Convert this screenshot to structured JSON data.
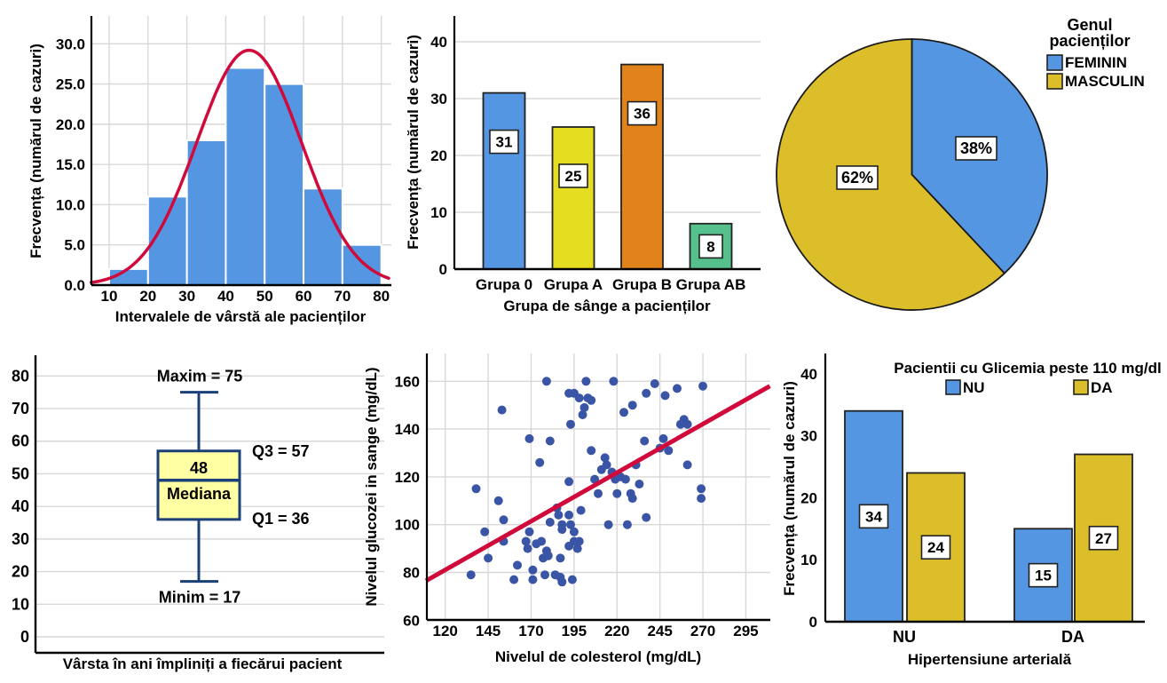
{
  "page": {
    "background": "#FFFFFF"
  },
  "palette": {
    "blue": "#5596E2",
    "yellow": "#E5DD1F",
    "orange": "#E2821A",
    "green": "#56C08C",
    "gold": "#DCBE2B",
    "red": "#D10A3C",
    "navy": "#1B3F77",
    "dot_navy": "#3A55A5",
    "grid": "#D8D8D8",
    "box_fill": "#FFFFA3"
  },
  "chart_data": [
    {
      "id": "histogram-age",
      "type": "histogram",
      "xlabel": "Intervalele de vârstă ale pacienților",
      "ylabel": "Frecvența (numărul de cazuri)",
      "bin_start": 10,
      "bin_width": 10,
      "bin_edges": [
        10,
        20,
        30,
        40,
        50,
        60,
        70,
        80
      ],
      "frequencies": [
        2,
        11,
        18,
        27,
        25,
        12,
        5
      ],
      "x_ticks": [
        10,
        20,
        30,
        40,
        50,
        60,
        70,
        80
      ],
      "y_tick_labels": [
        "0.0",
        "5.0",
        "10.0",
        "15.0",
        "20.0",
        "25.0",
        "30.0"
      ],
      "y_tick_values": [
        0,
        5,
        10,
        15,
        20,
        25,
        30
      ],
      "ylim": [
        0,
        33.5
      ],
      "grid": true,
      "normal_curve": {
        "mean": 46,
        "sd": 13.5,
        "peak": 29.2
      },
      "bar_color": "#5596E2",
      "curve_color": "#D10A3C"
    },
    {
      "id": "bar-blood-group",
      "type": "bar",
      "xlabel": "Grupa de sânge a pacienților",
      "ylabel": "Frecvența (numărul de cazuri)",
      "categories": [
        "Grupa 0",
        "Grupa A",
        "Grupa B",
        "Grupa AB"
      ],
      "values": [
        31,
        25,
        36,
        8
      ],
      "value_labels": [
        "31",
        "25",
        "36",
        "8"
      ],
      "colors": [
        "#5596E2",
        "#E5DD1F",
        "#E2821A",
        "#56C08C"
      ],
      "y_ticks": [
        0,
        10,
        20,
        30,
        40
      ],
      "ylim": [
        0,
        44.5
      ],
      "grid": true
    },
    {
      "id": "pie-gender",
      "type": "pie",
      "legend_title_lines": [
        "Genul",
        "pacienților"
      ],
      "slices": [
        {
          "label": "FEMININ",
          "pct": 38,
          "pct_label": "38%",
          "color": "#5596E2"
        },
        {
          "label": "MASCULIN",
          "pct": 62,
          "pct_label": "62%",
          "color": "#DCBE2B"
        }
      ],
      "start_angle_deg_from_top": 0,
      "direction": "clockwise",
      "legend_position": "top-right"
    },
    {
      "id": "boxplot-age",
      "type": "boxplot",
      "xlabel": "Vârsta în ani împliniți a fiecărui pacient",
      "y_ticks": [
        0,
        10,
        20,
        30,
        40,
        50,
        60,
        70,
        80
      ],
      "ylim": [
        0,
        86
      ],
      "grid": true,
      "min": 17,
      "q1": 36,
      "median": 48,
      "q3": 57,
      "max": 75,
      "annotations": {
        "max": "Maxim = 75",
        "q3": "Q3 = 57",
        "median_value": "48",
        "median_word": "Mediana",
        "q1": "Q1 = 36",
        "min": "Minim = 17"
      },
      "box_fill": "#FFFFA3",
      "box_stroke": "#1B3F77"
    },
    {
      "id": "scatter-cholesterol-glucose",
      "type": "scatter",
      "xlabel": "Nivelul de colesterol (mg/dL)",
      "ylabel": "Nivelul glucozei in sange (mg/dL)",
      "x_ticks": [
        120,
        145,
        170,
        195,
        220,
        245,
        270,
        295
      ],
      "y_ticks": [
        60,
        80,
        100,
        120,
        140,
        160
      ],
      "xlim": [
        108,
        309
      ],
      "ylim": [
        57,
        171
      ],
      "grid": true,
      "point_color": "#3A55A5",
      "line_color": "#D10A3C",
      "fit_line": {
        "x1": 108.8,
        "y1": 76.5,
        "x2": 309,
        "y2": 158
      },
      "points": [
        [
          135,
          79
        ],
        [
          138,
          115
        ],
        [
          143,
          97
        ],
        [
          145,
          86
        ],
        [
          151,
          110
        ],
        [
          153,
          148
        ],
        [
          154,
          93
        ],
        [
          154,
          102
        ],
        [
          160,
          77
        ],
        [
          162,
          83
        ],
        [
          167,
          93
        ],
        [
          168,
          90
        ],
        [
          169,
          97
        ],
        [
          169,
          136
        ],
        [
          171,
          81
        ],
        [
          171,
          77
        ],
        [
          173,
          92
        ],
        [
          175,
          126
        ],
        [
          176,
          93
        ],
        [
          177,
          86
        ],
        [
          178,
          79
        ],
        [
          179,
          160
        ],
        [
          179,
          89
        ],
        [
          180,
          87
        ],
        [
          181,
          135
        ],
        [
          181,
          101
        ],
        [
          184,
          79
        ],
        [
          185,
          107
        ],
        [
          186,
          104
        ],
        [
          187,
          86
        ],
        [
          187,
          78
        ],
        [
          188,
          100
        ],
        [
          188,
          98
        ],
        [
          188,
          76
        ],
        [
          192,
          104
        ],
        [
          192,
          91
        ],
        [
          192,
          155
        ],
        [
          192,
          118
        ],
        [
          193,
          142
        ],
        [
          193,
          100
        ],
        [
          194,
          77
        ],
        [
          195,
          155
        ],
        [
          195,
          97
        ],
        [
          195,
          93
        ],
        [
          197,
          90
        ],
        [
          198,
          153
        ],
        [
          198,
          93
        ],
        [
          199,
          106
        ],
        [
          200,
          146
        ],
        [
          201,
          149
        ],
        [
          202,
          160
        ],
        [
          203,
          153
        ],
        [
          205,
          152
        ],
        [
          205,
          131
        ],
        [
          207,
          119
        ],
        [
          209,
          113
        ],
        [
          211,
          123
        ],
        [
          213,
          128
        ],
        [
          214,
          125
        ],
        [
          215,
          100
        ],
        [
          217,
          122
        ],
        [
          218,
          160
        ],
        [
          219,
          119
        ],
        [
          220,
          113
        ],
        [
          222,
          120
        ],
        [
          224,
          147
        ],
        [
          225,
          119
        ],
        [
          226,
          100
        ],
        [
          228,
          113
        ],
        [
          229,
          111
        ],
        [
          229,
          150
        ],
        [
          231,
          125
        ],
        [
          233,
          117
        ],
        [
          236,
          135
        ],
        [
          237,
          103
        ],
        [
          237,
          155
        ],
        [
          242,
          159
        ],
        [
          245,
          132
        ],
        [
          247,
          136
        ],
        [
          248,
          154
        ],
        [
          250,
          131
        ],
        [
          255,
          157
        ],
        [
          257,
          142
        ],
        [
          259,
          144
        ],
        [
          261,
          142
        ],
        [
          261,
          125
        ],
        [
          269,
          115
        ],
        [
          269,
          111
        ],
        [
          270,
          158
        ]
      ]
    },
    {
      "id": "grouped-bar-hypertension",
      "type": "grouped_bar",
      "legend_title": "Pacientii cu Glicemia peste 110 mg/dl",
      "xlabel": "Hipertensiune arterială",
      "ylabel": "Frecvența (numărul de cazuri)",
      "categories": [
        "NU",
        "DA"
      ],
      "series": [
        {
          "name": "NU",
          "color": "#5596E2",
          "values": [
            34,
            15
          ]
        },
        {
          "name": "DA",
          "color": "#DCBE2B",
          "values": [
            24,
            27
          ]
        }
      ],
      "value_labels": [
        [
          "34",
          "15"
        ],
        [
          "24",
          "27"
        ]
      ],
      "y_ticks": [
        0,
        10,
        20,
        30,
        40
      ],
      "ylim": [
        0,
        43
      ],
      "grid": false
    }
  ]
}
